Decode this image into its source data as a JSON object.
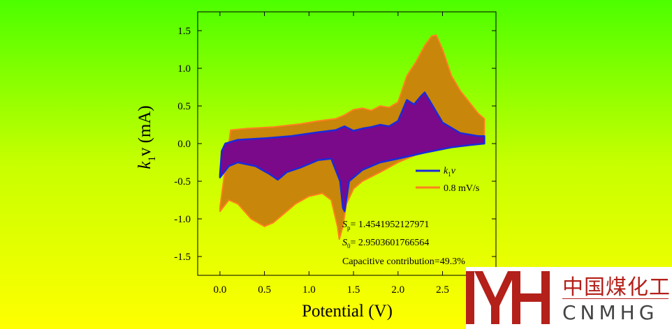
{
  "chart_data": {
    "type": "area",
    "xlabel": "Potential (V)",
    "ylabel_main": "k",
    "ylabel_sub": "1",
    "ylabel_rest": "v (mA)",
    "xlim": [
      -0.25,
      3.1
    ],
    "ylim": [
      -1.75,
      1.75
    ],
    "x_ticks": [
      0.0,
      0.5,
      1.0,
      1.5,
      2.0,
      2.5
    ],
    "x_tick_labels": [
      "0.0",
      "0.5",
      "1.0",
      "1.5",
      "2.0",
      "2.5"
    ],
    "y_ticks": [
      -1.5,
      -1.0,
      -0.5,
      0.0,
      0.5,
      1.0,
      1.5
    ],
    "y_tick_labels": [
      "-1.5",
      "-1.0",
      "-0.5",
      "0.0",
      "0.5",
      "1.0",
      "1.5"
    ],
    "series": [
      {
        "name": "0.8 mV/s",
        "line_color": "#ff7f1e",
        "fill_color": "#c8860a",
        "upper": {
          "x": [
            0.0,
            0.04,
            0.12,
            0.3,
            0.6,
            0.9,
            1.1,
            1.3,
            1.4,
            1.5,
            1.6,
            1.7,
            1.8,
            1.9,
            2.0,
            2.1,
            2.2,
            2.3,
            2.38,
            2.43,
            2.5,
            2.6,
            2.7,
            2.8,
            2.9,
            2.97
          ],
          "y": [
            -0.85,
            -0.5,
            0.18,
            0.2,
            0.22,
            0.26,
            0.3,
            0.33,
            0.38,
            0.45,
            0.47,
            0.44,
            0.5,
            0.48,
            0.55,
            0.9,
            1.08,
            1.3,
            1.43,
            1.44,
            1.25,
            0.9,
            0.7,
            0.55,
            0.4,
            0.33
          ]
        },
        "lower": {
          "x": [
            0.0,
            0.1,
            0.2,
            0.35,
            0.5,
            0.6,
            0.7,
            0.85,
            1.0,
            1.15,
            1.25,
            1.32,
            1.34,
            1.38,
            1.42,
            1.5,
            1.6,
            1.8,
            2.0,
            2.2,
            2.4,
            2.6,
            2.8,
            2.97
          ],
          "y": [
            -0.9,
            -0.75,
            -0.8,
            -1.0,
            -1.1,
            -1.05,
            -0.95,
            -0.8,
            -0.7,
            -0.66,
            -0.75,
            -1.1,
            -1.27,
            -1.1,
            -0.8,
            -0.6,
            -0.5,
            -0.38,
            -0.25,
            -0.15,
            -0.05,
            0.02,
            0.05,
            0.08
          ]
        }
      },
      {
        "name": "k1v",
        "line_color": "#1a2adc",
        "fill_color": "#7a0a8a",
        "upper": {
          "x": [
            0.0,
            0.02,
            0.06,
            0.2,
            0.5,
            0.8,
            1.1,
            1.3,
            1.4,
            1.5,
            1.6,
            1.7,
            1.8,
            1.9,
            2.0,
            2.1,
            2.18,
            2.25,
            2.3,
            2.38,
            2.5,
            2.7,
            2.9,
            2.97
          ],
          "y": [
            -0.42,
            -0.1,
            0.0,
            0.05,
            0.07,
            0.1,
            0.15,
            0.18,
            0.23,
            0.17,
            0.2,
            0.22,
            0.25,
            0.23,
            0.3,
            0.58,
            0.52,
            0.62,
            0.68,
            0.52,
            0.28,
            0.14,
            0.1,
            0.1
          ]
        },
        "lower": {
          "x": [
            0.0,
            0.1,
            0.2,
            0.4,
            0.55,
            0.65,
            0.75,
            0.9,
            1.1,
            1.25,
            1.35,
            1.38,
            1.4,
            1.45,
            1.6,
            1.8,
            2.0,
            2.3,
            2.6,
            2.8,
            2.97
          ],
          "y": [
            -0.45,
            -0.3,
            -0.25,
            -0.3,
            -0.4,
            -0.48,
            -0.38,
            -0.32,
            -0.22,
            -0.2,
            -0.5,
            -0.85,
            -0.9,
            -0.5,
            -0.35,
            -0.25,
            -0.2,
            -0.12,
            -0.05,
            -0.02,
            0.0
          ]
        }
      }
    ]
  },
  "legend": [
    {
      "label_main": "k",
      "label_sub": "1",
      "label_rest": "v",
      "color": "#1a2adc"
    },
    {
      "label": "0.8 mV/s",
      "color": "#ff7f1e"
    }
  ],
  "annotations": {
    "sp_symbol": "S",
    "sp_sub": "p",
    "sp_value": "= 1.4541952127971",
    "s0_symbol": "S",
    "s0_sub": "0",
    "s0_value": "= 2.9503601766564",
    "capacitive": "Capacitive contribution=49.3%"
  },
  "logo": {
    "chinese": "中国煤化工",
    "english": "CNMHG",
    "mark_color": "#b4201a"
  }
}
